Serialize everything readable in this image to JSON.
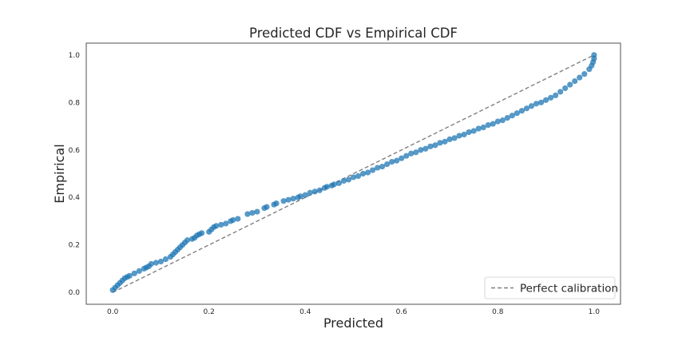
{
  "chart_data": {
    "type": "scatter",
    "title": "Predicted CDF vs Empirical CDF",
    "xlabel": "Predicted",
    "ylabel": "Empirical",
    "xlim": [
      -0.055,
      1.055
    ],
    "ylim": [
      -0.05,
      1.05
    ],
    "xticks": [
      0.0,
      0.2,
      0.4,
      0.6,
      0.8,
      1.0
    ],
    "yticks": [
      0.0,
      0.2,
      0.4,
      0.6,
      0.8,
      1.0
    ],
    "tick_labels_x": [
      "0.0",
      "0.2",
      "0.4",
      "0.6",
      "0.8",
      "1.0"
    ],
    "tick_labels_y": [
      "0.0",
      "0.2",
      "0.4",
      "0.6",
      "0.8",
      "1.0"
    ],
    "grid": false,
    "legend": {
      "placement": "bottom-right",
      "entries": [
        "Perfect calibration"
      ]
    },
    "series": [
      {
        "color": "#1f77b4",
        "marker": "circle",
        "points": [
          [
            0.0,
            0.01
          ],
          [
            0.005,
            0.02
          ],
          [
            0.01,
            0.03
          ],
          [
            0.015,
            0.04
          ],
          [
            0.02,
            0.05
          ],
          [
            0.025,
            0.06
          ],
          [
            0.03,
            0.065
          ],
          [
            0.035,
            0.07
          ],
          [
            0.045,
            0.08
          ],
          [
            0.055,
            0.09
          ],
          [
            0.065,
            0.1
          ],
          [
            0.07,
            0.105
          ],
          [
            0.075,
            0.11
          ],
          [
            0.08,
            0.12
          ],
          [
            0.09,
            0.125
          ],
          [
            0.1,
            0.13
          ],
          [
            0.11,
            0.14
          ],
          [
            0.12,
            0.15
          ],
          [
            0.125,
            0.16
          ],
          [
            0.13,
            0.17
          ],
          [
            0.135,
            0.18
          ],
          [
            0.14,
            0.19
          ],
          [
            0.145,
            0.2
          ],
          [
            0.15,
            0.21
          ],
          [
            0.155,
            0.22
          ],
          [
            0.165,
            0.225
          ],
          [
            0.17,
            0.23
          ],
          [
            0.175,
            0.24
          ],
          [
            0.18,
            0.245
          ],
          [
            0.185,
            0.25
          ],
          [
            0.2,
            0.255
          ],
          [
            0.205,
            0.265
          ],
          [
            0.21,
            0.275
          ],
          [
            0.215,
            0.28
          ],
          [
            0.225,
            0.285
          ],
          [
            0.235,
            0.29
          ],
          [
            0.245,
            0.3
          ],
          [
            0.25,
            0.305
          ],
          [
            0.26,
            0.31
          ],
          [
            0.28,
            0.33
          ],
          [
            0.29,
            0.335
          ],
          [
            0.3,
            0.34
          ],
          [
            0.315,
            0.355
          ],
          [
            0.32,
            0.36
          ],
          [
            0.335,
            0.37
          ],
          [
            0.34,
            0.375
          ],
          [
            0.355,
            0.385
          ],
          [
            0.365,
            0.39
          ],
          [
            0.375,
            0.395
          ],
          [
            0.385,
            0.4
          ],
          [
            0.39,
            0.405
          ],
          [
            0.4,
            0.41
          ],
          [
            0.41,
            0.42
          ],
          [
            0.42,
            0.425
          ],
          [
            0.43,
            0.43
          ],
          [
            0.44,
            0.44
          ],
          [
            0.445,
            0.445
          ],
          [
            0.455,
            0.45
          ],
          [
            0.46,
            0.455
          ],
          [
            0.47,
            0.46
          ],
          [
            0.48,
            0.47
          ],
          [
            0.49,
            0.475
          ],
          [
            0.5,
            0.485
          ],
          [
            0.51,
            0.49
          ],
          [
            0.52,
            0.5
          ],
          [
            0.53,
            0.505
          ],
          [
            0.54,
            0.515
          ],
          [
            0.55,
            0.525
          ],
          [
            0.56,
            0.53
          ],
          [
            0.57,
            0.54
          ],
          [
            0.58,
            0.55
          ],
          [
            0.59,
            0.555
          ],
          [
            0.6,
            0.565
          ],
          [
            0.61,
            0.575
          ],
          [
            0.62,
            0.585
          ],
          [
            0.63,
            0.59
          ],
          [
            0.64,
            0.6
          ],
          [
            0.65,
            0.605
          ],
          [
            0.66,
            0.615
          ],
          [
            0.67,
            0.62
          ],
          [
            0.68,
            0.63
          ],
          [
            0.69,
            0.635
          ],
          [
            0.7,
            0.645
          ],
          [
            0.71,
            0.65
          ],
          [
            0.72,
            0.66
          ],
          [
            0.73,
            0.665
          ],
          [
            0.74,
            0.675
          ],
          [
            0.75,
            0.68
          ],
          [
            0.76,
            0.69
          ],
          [
            0.77,
            0.695
          ],
          [
            0.78,
            0.705
          ],
          [
            0.79,
            0.71
          ],
          [
            0.8,
            0.72
          ],
          [
            0.81,
            0.725
          ],
          [
            0.82,
            0.735
          ],
          [
            0.83,
            0.745
          ],
          [
            0.84,
            0.755
          ],
          [
            0.85,
            0.765
          ],
          [
            0.86,
            0.775
          ],
          [
            0.87,
            0.785
          ],
          [
            0.88,
            0.795
          ],
          [
            0.89,
            0.8
          ],
          [
            0.9,
            0.81
          ],
          [
            0.91,
            0.82
          ],
          [
            0.92,
            0.83
          ],
          [
            0.93,
            0.845
          ],
          [
            0.94,
            0.86
          ],
          [
            0.95,
            0.875
          ],
          [
            0.96,
            0.89
          ],
          [
            0.97,
            0.905
          ],
          [
            0.98,
            0.92
          ],
          [
            0.99,
            0.94
          ],
          [
            0.995,
            0.955
          ],
          [
            0.998,
            0.97
          ],
          [
            1.0,
            0.985
          ],
          [
            1.0,
            1.0
          ]
        ]
      }
    ],
    "reference_line": {
      "name": "Perfect calibration",
      "points": [
        [
          0.0,
          0.0
        ],
        [
          1.0,
          1.0
        ]
      ],
      "color": "#808080",
      "style": "dashed"
    }
  }
}
